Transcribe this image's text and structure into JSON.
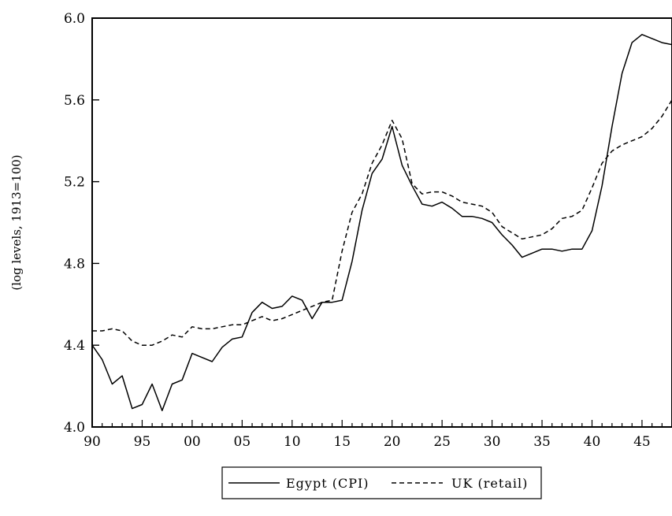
{
  "chart_data": {
    "type": "line",
    "title": "",
    "xlabel": "",
    "ylabel": "(log levels, 1913=100)",
    "xlim": [
      1890,
      1948
    ],
    "ylim": [
      4.0,
      6.0
    ],
    "x_ticks": [
      1890,
      1895,
      1900,
      1905,
      1910,
      1915,
      1920,
      1925,
      1930,
      1935,
      1940,
      1945
    ],
    "x_tick_labels": [
      "90",
      "95",
      "00",
      "05",
      "10",
      "15",
      "20",
      "25",
      "30",
      "35",
      "40",
      "45"
    ],
    "y_ticks": [
      4.0,
      4.4,
      4.8,
      5.2,
      5.6,
      6.0
    ],
    "y_tick_labels": [
      "4.0",
      "4.4",
      "4.8",
      "5.2",
      "5.6",
      "6.0"
    ],
    "grid": false,
    "legend_position": "bottom-center",
    "x": [
      1890,
      1891,
      1892,
      1893,
      1894,
      1895,
      1896,
      1897,
      1898,
      1899,
      1900,
      1901,
      1902,
      1903,
      1904,
      1905,
      1906,
      1907,
      1908,
      1909,
      1910,
      1911,
      1912,
      1913,
      1914,
      1915,
      1916,
      1917,
      1918,
      1919,
      1920,
      1921,
      1922,
      1923,
      1924,
      1925,
      1926,
      1927,
      1928,
      1929,
      1930,
      1931,
      1932,
      1933,
      1934,
      1935,
      1936,
      1937,
      1938,
      1939,
      1940,
      1941,
      1942,
      1943,
      1944,
      1945,
      1946,
      1947,
      1948
    ],
    "series": [
      {
        "name": "Egypt (CPI)",
        "style": "solid",
        "color": "#000000",
        "values": [
          4.4,
          4.33,
          4.21,
          4.25,
          4.09,
          4.11,
          4.21,
          4.08,
          4.21,
          4.23,
          4.36,
          4.34,
          4.32,
          4.39,
          4.43,
          4.44,
          4.56,
          4.61,
          4.58,
          4.59,
          4.64,
          4.62,
          4.53,
          4.61,
          4.61,
          4.62,
          4.81,
          5.06,
          5.24,
          5.31,
          5.47,
          5.28,
          5.18,
          5.09,
          5.08,
          5.1,
          5.07,
          5.03,
          5.03,
          5.02,
          5.0,
          4.94,
          4.89,
          4.83,
          4.85,
          4.87,
          4.87,
          4.86,
          4.87,
          4.87,
          4.96,
          5.18,
          5.47,
          5.73,
          5.88,
          5.92,
          5.9,
          5.88,
          5.87
        ]
      },
      {
        "name": "UK (retail)",
        "style": "dashed",
        "color": "#000000",
        "values": [
          4.47,
          4.47,
          4.48,
          4.47,
          4.42,
          4.4,
          4.4,
          4.42,
          4.45,
          4.44,
          4.49,
          4.48,
          4.48,
          4.49,
          4.5,
          4.5,
          4.52,
          4.54,
          4.52,
          4.53,
          4.55,
          4.57,
          4.59,
          4.61,
          4.62,
          4.86,
          5.05,
          5.14,
          5.29,
          5.38,
          5.5,
          5.41,
          5.19,
          5.14,
          5.15,
          5.15,
          5.13,
          5.1,
          5.09,
          5.08,
          5.05,
          4.98,
          4.95,
          4.92,
          4.93,
          4.94,
          4.97,
          5.02,
          5.03,
          5.06,
          5.17,
          5.29,
          5.35,
          5.38,
          5.4,
          5.42,
          5.46,
          5.52,
          5.6
        ]
      }
    ]
  }
}
